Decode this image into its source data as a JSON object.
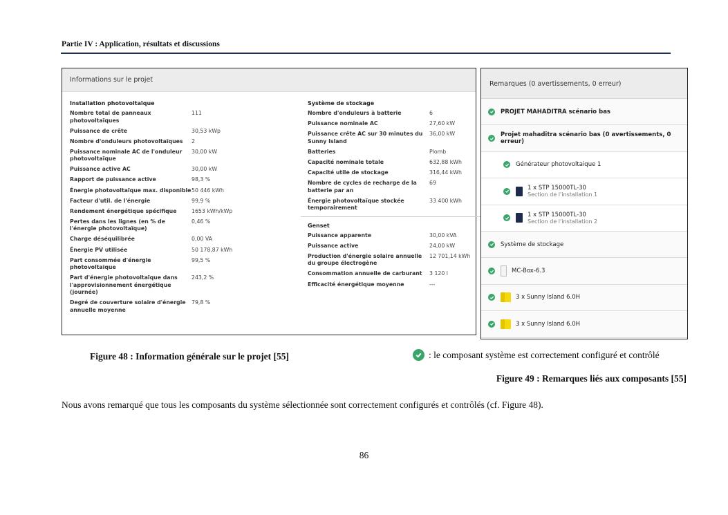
{
  "header": {
    "title": "Partie IV : Application, résultats et discussions"
  },
  "figure48": {
    "title": "Informations sur le projet",
    "pv": {
      "title": "Installation photovoltaïque",
      "rows": [
        [
          "Nombre total de panneaux photovoltaïques",
          "111"
        ],
        [
          "Puissance de crête",
          "30,53 kWp"
        ],
        [
          "Nombre d'onduleurs photovoltaïques",
          "2"
        ],
        [
          "Puissance nominale AC de l'onduleur photovoltaïque",
          "30,00 kW"
        ],
        [
          "Puissance active AC",
          "30,00 kW"
        ],
        [
          "Rapport de puissance active",
          "98,3 %"
        ],
        [
          "Énergie photovoltaïque max. disponible",
          "50 446 kWh"
        ],
        [
          "Facteur d'util. de l'énergie",
          "99,9 %"
        ],
        [
          "Rendement énergétique spécifique",
          "1653 kWh/kWp"
        ],
        [
          "Pertes dans les lignes (en % de l'énergie photovoltaïque)",
          "0,46 %"
        ],
        [
          "Charge déséquilibrée",
          "0,00 VA"
        ],
        [
          "Énergie PV utilisée",
          "50 178,87 kWh"
        ],
        [
          "Part consommée d'énergie photovoltaïque",
          "99,5 %"
        ],
        [
          "Part d'énergie photovoltaïque dans l'approvisionnement énergétique (journée)",
          "243,2 %"
        ],
        [
          "Degré de couverture solaire d'énergie annuelle moyenne",
          "79,8 %"
        ]
      ]
    },
    "storage": {
      "title": "Système de stockage",
      "rows": [
        [
          "Nombre d'onduleurs à batterie",
          "6"
        ],
        [
          "Puissance nominale AC",
          "27,60 kW"
        ],
        [
          "Puissance crête AC sur 30 minutes du Sunny Island",
          "36,00 kW"
        ],
        [
          "Batteries",
          "Plomb"
        ],
        [
          "Capacité nominale totale",
          "632,88 kWh"
        ],
        [
          "Capacité utile de stockage",
          "316,44 kWh"
        ],
        [
          "Nombre de cycles de recharge de la batterie par an",
          "69"
        ],
        [
          "Énergie photovoltaïque stockée temporairement",
          "33 400 kWh"
        ]
      ]
    },
    "genset": {
      "title": "Genset",
      "rows": [
        [
          "Puissance apparente",
          "30,00 kVA"
        ],
        [
          "Puissance active",
          "24,00 kW"
        ],
        [
          "Production d'énergie solaire annuelle du groupe électrogène",
          "12 701,14 kWh"
        ],
        [
          "Consommation annuelle de carburant",
          "3 120 l"
        ],
        [
          "Efficacité énergétique moyenne",
          "---"
        ]
      ]
    },
    "caption": "Figure 48 : Information générale sur le projet  [55]"
  },
  "figure49": {
    "title": "Remarques (0 avertissements, 0 erreur)",
    "check_color": "#3aa56b",
    "items": [
      {
        "label": "PROJET MAHADITRA scénario bas",
        "bold": true,
        "indent": false,
        "icon": ""
      },
      {
        "label": "Projet mahaditra scénario bas (0 avertissements, 0 erreur)",
        "bold": true,
        "indent": false,
        "icon": ""
      },
      {
        "label": "Générateur photovoltaique 1",
        "indent": true,
        "icon": ""
      },
      {
        "label": "1 x STP 15000TL-30",
        "sub": "Section de l'installation 1",
        "indent": true,
        "icon": "inverter-icon"
      },
      {
        "label": "1 x STP 15000TL-30",
        "sub": "Section de l'installation 2",
        "indent": true,
        "icon": "inverter-icon"
      },
      {
        "label": "Système de stockage",
        "indent": false,
        "icon": ""
      },
      {
        "label": "MC-Box-6.3",
        "indent": false,
        "icon": "mc-box-icon"
      },
      {
        "label": "3 x Sunny Island 6.0H",
        "indent": false,
        "icon": "sunny-island-icon"
      },
      {
        "label": "3 x Sunny Island 6.0H",
        "indent": false,
        "icon": "sunny-island-icon"
      }
    ],
    "legend": ": le composant système est correctement configuré et contrôlé",
    "caption": "Figure 49 : Remarques liés aux composants [55]"
  },
  "body_text": "Nous avons remarqué que tous les composants du système sélectionnée sont correctement configurés et contrôlés (cf. Figure 48).",
  "page_number": "86"
}
